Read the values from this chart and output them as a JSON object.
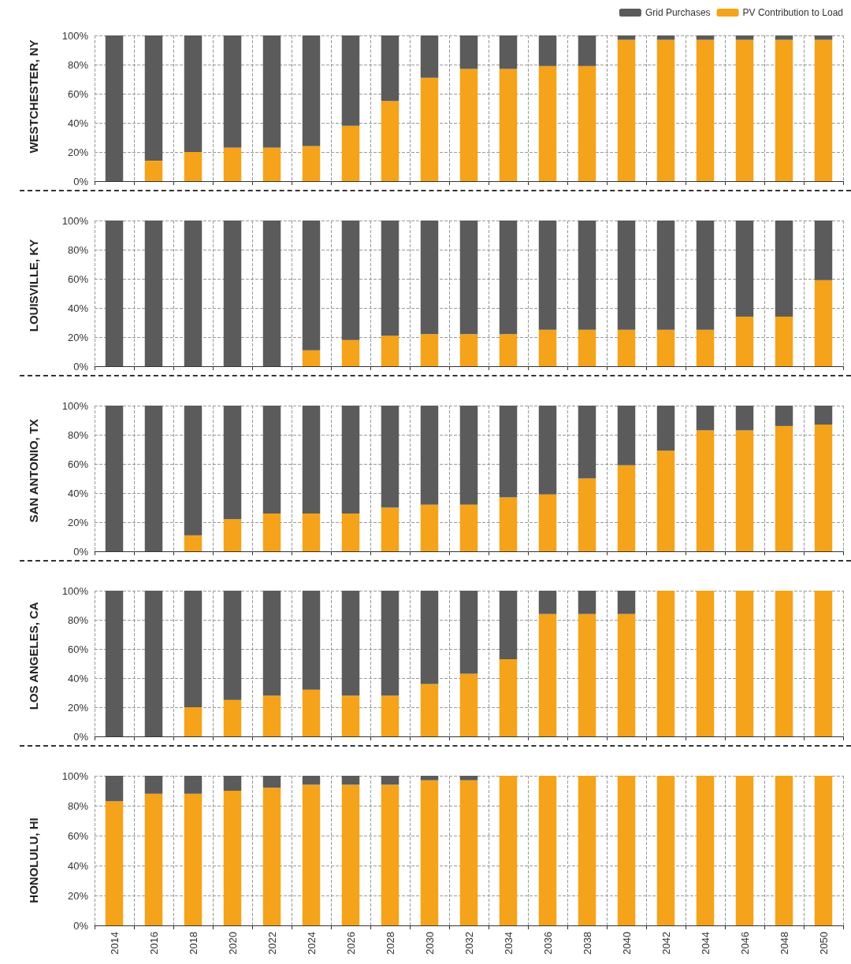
{
  "chart_data": [
    {
      "type": "bar",
      "title": "WESTCHESTER, NY",
      "stacked": true,
      "grid": true,
      "legend": "top right",
      "tick_labels": "y",
      "categories": [
        "2014",
        "2016",
        "2018",
        "2020",
        "2022",
        "2024",
        "2026",
        "2028",
        "2030",
        "2032",
        "2034",
        "2036",
        "2038",
        "2040",
        "2042",
        "2044",
        "2046",
        "2048",
        "2050"
      ],
      "ylim": [
        0,
        100
      ],
      "yticks": [
        {
          "value": 0,
          "label": "0%"
        },
        {
          "value": 20,
          "label": "20%"
        },
        {
          "value": 40,
          "label": "40%"
        },
        {
          "value": 60,
          "label": "60%"
        },
        {
          "value": 80,
          "label": "80%"
        },
        {
          "value": 100,
          "label": "100%"
        }
      ],
      "series": [
        {
          "name": "PV Contribution to Load",
          "color": "#f5a31a",
          "values": [
            0,
            14,
            20,
            23,
            23,
            24,
            38,
            55,
            71,
            77,
            77,
            79,
            79,
            97,
            97,
            97,
            97,
            97,
            97
          ]
        },
        {
          "name": "Grid Purchases",
          "color": "#5b5b5b",
          "values": [
            100,
            86,
            80,
            77,
            77,
            76,
            62,
            45,
            29,
            23,
            23,
            21,
            21,
            3,
            3,
            3,
            3,
            3,
            3
          ]
        }
      ]
    },
    {
      "type": "bar",
      "title": "LOUISVILLE, KY",
      "stacked": true,
      "grid": true,
      "tick_labels": "y",
      "categories": [
        "2014",
        "2016",
        "2018",
        "2020",
        "2022",
        "2024",
        "2026",
        "2028",
        "2030",
        "2032",
        "2034",
        "2036",
        "2038",
        "2040",
        "2042",
        "2044",
        "2046",
        "2048",
        "2050"
      ],
      "ylim": [
        0,
        100
      ],
      "yticks": [
        {
          "value": 0,
          "label": "0%"
        },
        {
          "value": 20,
          "label": "20%"
        },
        {
          "value": 40,
          "label": "40%"
        },
        {
          "value": 60,
          "label": "60%"
        },
        {
          "value": 80,
          "label": "80%"
        },
        {
          "value": 100,
          "label": "100%"
        }
      ],
      "series": [
        {
          "color": "#f5a31a",
          "values": [
            0,
            0,
            0,
            0,
            0,
            11,
            18,
            21,
            22,
            22,
            22,
            25,
            25,
            25,
            25,
            25,
            34,
            34,
            59
          ]
        },
        {
          "color": "#5b5b5b",
          "values": [
            100,
            100,
            100,
            100,
            100,
            89,
            82,
            79,
            78,
            78,
            78,
            75,
            75,
            75,
            75,
            75,
            66,
            66,
            41
          ]
        }
      ]
    },
    {
      "type": "bar",
      "title": "SAN ANTONIO, TX",
      "stacked": true,
      "grid": true,
      "tick_labels": "y",
      "categories": [
        "2014",
        "2016",
        "2018",
        "2020",
        "2022",
        "2024",
        "2026",
        "2028",
        "2030",
        "2032",
        "2034",
        "2036",
        "2038",
        "2040",
        "2042",
        "2044",
        "2046",
        "2048",
        "2050"
      ],
      "ylim": [
        0,
        100
      ],
      "yticks": [
        {
          "value": 0,
          "label": "0%"
        },
        {
          "value": 20,
          "label": "20%"
        },
        {
          "value": 40,
          "label": "40%"
        },
        {
          "value": 60,
          "label": "60%"
        },
        {
          "value": 80,
          "label": "80%"
        },
        {
          "value": 100,
          "label": "100%"
        }
      ],
      "series": [
        {
          "color": "#f5a31a",
          "values": [
            0,
            0,
            11,
            22,
            26,
            26,
            26,
            30,
            32,
            32,
            37,
            39,
            50,
            59,
            69,
            83,
            83,
            86,
            87
          ]
        },
        {
          "color": "#5b5b5b",
          "values": [
            100,
            100,
            89,
            78,
            74,
            74,
            74,
            70,
            68,
            68,
            63,
            61,
            50,
            41,
            31,
            17,
            17,
            14,
            13
          ]
        }
      ]
    },
    {
      "type": "bar",
      "title": "LOS ANGELES, CA",
      "stacked": true,
      "grid": true,
      "tick_labels": "y",
      "categories": [
        "2014",
        "2016",
        "2018",
        "2020",
        "2022",
        "2024",
        "2026",
        "2028",
        "2030",
        "2032",
        "2034",
        "2036",
        "2038",
        "2040",
        "2042",
        "2044",
        "2046",
        "2048",
        "2050"
      ],
      "ylim": [
        0,
        100
      ],
      "yticks": [
        {
          "value": 0,
          "label": "0%"
        },
        {
          "value": 20,
          "label": "20%"
        },
        {
          "value": 40,
          "label": "40%"
        },
        {
          "value": 60,
          "label": "60%"
        },
        {
          "value": 80,
          "label": "80%"
        },
        {
          "value": 100,
          "label": "100%"
        }
      ],
      "series": [
        {
          "color": "#f5a31a",
          "values": [
            0,
            0,
            20,
            25,
            28,
            32,
            28,
            28,
            36,
            43,
            53,
            84,
            84,
            84,
            100,
            100,
            100,
            100,
            100
          ]
        },
        {
          "color": "#5b5b5b",
          "values": [
            100,
            100,
            80,
            75,
            72,
            68,
            72,
            72,
            64,
            57,
            47,
            16,
            16,
            16,
            0,
            0,
            0,
            0,
            0
          ]
        }
      ]
    },
    {
      "type": "bar",
      "title": "HONOLULU, HI",
      "stacked": true,
      "grid": true,
      "categories": [
        "2014",
        "2016",
        "2018",
        "2020",
        "2022",
        "2024",
        "2026",
        "2028",
        "2030",
        "2032",
        "2034",
        "2036",
        "2038",
        "2040",
        "2042",
        "2044",
        "2046",
        "2048",
        "2050"
      ],
      "ylim": [
        0,
        100
      ],
      "yticks": [
        {
          "value": 0,
          "label": "0%"
        },
        {
          "value": 20,
          "label": "20%"
        },
        {
          "value": 40,
          "label": "40%"
        },
        {
          "value": 60,
          "label": "60%"
        },
        {
          "value": 80,
          "label": "80%"
        },
        {
          "value": 100,
          "label": "100%"
        }
      ],
      "series": [
        {
          "color": "#f5a31a",
          "values": [
            83,
            88,
            88,
            90,
            92,
            94,
            94,
            94,
            97,
            97,
            100,
            100,
            100,
            100,
            100,
            100,
            100,
            100,
            100
          ]
        },
        {
          "color": "#5b5b5b",
          "values": [
            17,
            12,
            12,
            10,
            8,
            6,
            6,
            6,
            3,
            3,
            0,
            0,
            0,
            0,
            0,
            0,
            0,
            0,
            0
          ]
        }
      ]
    }
  ]
}
